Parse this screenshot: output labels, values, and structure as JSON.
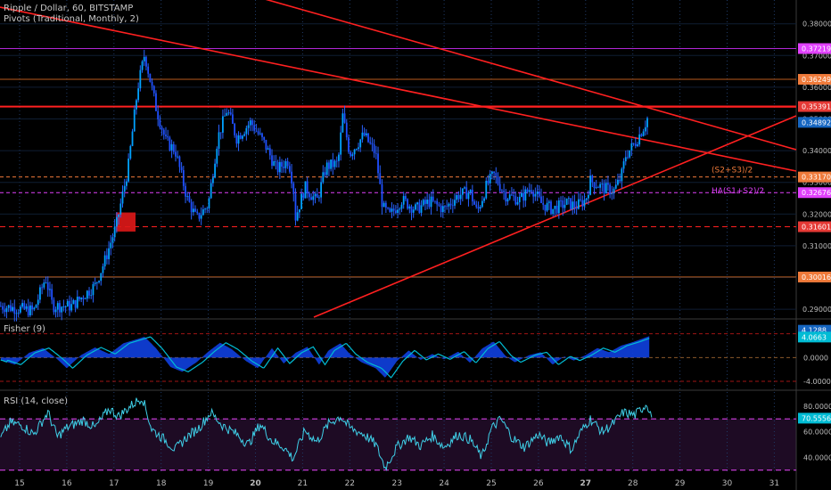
{
  "chart_data": [
    {
      "type": "candlestick",
      "title": "Ripple / Dollar, 60, BITSTAMP",
      "subtitle": "Pivots (Traditional, Monthly, 2)",
      "x_ticks": [
        "15",
        "16",
        "17",
        "18",
        "19",
        "20",
        "21",
        "22",
        "23",
        "24",
        "25",
        "26",
        "27",
        "28",
        "29",
        "30",
        "31"
      ],
      "bold_ticks": [
        "20",
        "27"
      ],
      "ylim": [
        0.2875,
        0.3875
      ],
      "y_ticks": [
        0.29,
        0.3,
        0.31,
        0.32,
        0.33,
        0.34,
        0.35,
        0.36,
        0.37,
        0.38
      ],
      "y_tick_labels": [
        "0.29000",
        "0.30000",
        "0.31000",
        "0.32000",
        "0.33000",
        "0.34000",
        "0.35000",
        "0.36000",
        "0.37000",
        "0.38000"
      ],
      "price_labels": [
        {
          "value": 0.37219,
          "label": "0.37219",
          "color": "#e040fb"
        },
        {
          "value": 0.36249,
          "label": "0.36249",
          "color": "#ef7a3a"
        },
        {
          "value": 0.35391,
          "label": "0.35391",
          "color": "#e53935"
        },
        {
          "value": 0.34892,
          "label": "0.34892",
          "color": "#1565c0"
        },
        {
          "value": 0.3317,
          "label": "0.33170",
          "color": "#ef7a3a"
        },
        {
          "value": 0.32676,
          "label": "0.32676",
          "color": "#e040fb"
        },
        {
          "value": 0.31601,
          "label": "0.31601",
          "color": "#e53935"
        },
        {
          "value": 0.30016,
          "label": "0.30016",
          "color": "#ef7a3a"
        }
      ],
      "pivot_labels": [
        {
          "text": "(S2+S3)/2",
          "value": 0.3317,
          "color": "#ef7a3a"
        },
        {
          "text": "HA(S1+S2)/2",
          "value": 0.32676,
          "color": "#e040fb"
        }
      ],
      "path": [
        [
          14.6,
          0.291
        ],
        [
          15.3,
          0.2895
        ],
        [
          15.55,
          0.3
        ],
        [
          15.7,
          0.291
        ],
        [
          16.1,
          0.291
        ],
        [
          16.6,
          0.2975
        ],
        [
          16.8,
          0.305
        ],
        [
          17.05,
          0.3165
        ],
        [
          17.3,
          0.3345
        ],
        [
          17.5,
          0.3595
        ],
        [
          17.65,
          0.3705
        ],
        [
          17.9,
          0.353
        ],
        [
          18.1,
          0.343
        ],
        [
          18.3,
          0.34
        ],
        [
          18.55,
          0.325
        ],
        [
          18.75,
          0.3185
        ],
        [
          19.0,
          0.323
        ],
        [
          19.2,
          0.344
        ],
        [
          19.4,
          0.353
        ],
        [
          19.6,
          0.344
        ],
        [
          19.9,
          0.349
        ],
        [
          20.2,
          0.342
        ],
        [
          20.45,
          0.334
        ],
        [
          20.7,
          0.337
        ],
        [
          20.8,
          0.329
        ],
        [
          20.85,
          0.319
        ],
        [
          21.05,
          0.3285
        ],
        [
          21.3,
          0.324
        ],
        [
          21.5,
          0.335
        ],
        [
          21.75,
          0.336
        ],
        [
          21.85,
          0.351
        ],
        [
          22.0,
          0.339
        ],
        [
          22.3,
          0.345
        ],
        [
          22.55,
          0.339
        ],
        [
          22.7,
          0.322
        ],
        [
          22.85,
          0.3195
        ],
        [
          23.1,
          0.3245
        ],
        [
          23.4,
          0.3215
        ],
        [
          23.7,
          0.324
        ],
        [
          24.0,
          0.3215
        ],
        [
          24.3,
          0.326
        ],
        [
          24.55,
          0.327
        ],
        [
          24.7,
          0.3205
        ],
        [
          24.9,
          0.329
        ],
        [
          25.05,
          0.3325
        ],
        [
          25.3,
          0.326
        ],
        [
          25.6,
          0.3245
        ],
        [
          25.85,
          0.3285
        ],
        [
          26.05,
          0.3235
        ],
        [
          26.3,
          0.3215
        ],
        [
          26.6,
          0.3235
        ],
        [
          26.8,
          0.3225
        ],
        [
          27.0,
          0.3245
        ],
        [
          27.1,
          0.3305
        ],
        [
          27.4,
          0.328
        ],
        [
          27.6,
          0.3275
        ],
        [
          27.75,
          0.3315
        ],
        [
          27.85,
          0.3385
        ],
        [
          28.05,
          0.3425
        ],
        [
          28.25,
          0.348
        ],
        [
          28.35,
          0.3518
        ]
      ]
    },
    {
      "type": "histogram",
      "title": "Fisher (9)",
      "ylim": [
        -5.2,
        6.2
      ],
      "y_ticks": [
        4.0,
        0.0,
        -4.0
      ],
      "y_tick_labels": [
        "4.0000",
        "0.0000",
        "-4.0000"
      ],
      "dashed_levels": [
        4.0,
        -4.0
      ],
      "current_labels": [
        {
          "value": 4.6,
          "label": "4.1288",
          "color": "#1565c0"
        },
        {
          "value": 3.45,
          "label": "4.0663",
          "color": "#00bcd4"
        }
      ],
      "path": [
        [
          14.6,
          -0.4
        ],
        [
          14.9,
          -1.2
        ],
        [
          15.2,
          0.8
        ],
        [
          15.5,
          1.6
        ],
        [
          15.8,
          -0.3
        ],
        [
          16.0,
          -1.8
        ],
        [
          16.3,
          0.4
        ],
        [
          16.6,
          1.7
        ],
        [
          16.9,
          0.6
        ],
        [
          17.2,
          2.4
        ],
        [
          17.45,
          3.0
        ],
        [
          17.65,
          3.5
        ],
        [
          17.9,
          1.5
        ],
        [
          18.2,
          -1.6
        ],
        [
          18.45,
          -2.4
        ],
        [
          18.75,
          -0.8
        ],
        [
          19.0,
          1.0
        ],
        [
          19.25,
          2.5
        ],
        [
          19.5,
          1.4
        ],
        [
          19.8,
          -0.6
        ],
        [
          20.05,
          -1.8
        ],
        [
          20.35,
          1.6
        ],
        [
          20.6,
          -1.0
        ],
        [
          20.85,
          0.8
        ],
        [
          21.1,
          1.8
        ],
        [
          21.35,
          -1.2
        ],
        [
          21.55,
          1.2
        ],
        [
          21.8,
          2.4
        ],
        [
          22.0,
          0.6
        ],
        [
          22.25,
          -0.8
        ],
        [
          22.55,
          -1.8
        ],
        [
          22.75,
          -3.4
        ],
        [
          23.0,
          -0.6
        ],
        [
          23.25,
          1.2
        ],
        [
          23.5,
          -0.4
        ],
        [
          23.75,
          0.6
        ],
        [
          24.0,
          -0.3
        ],
        [
          24.3,
          1.0
        ],
        [
          24.55,
          -0.9
        ],
        [
          24.8,
          1.5
        ],
        [
          25.05,
          2.7
        ],
        [
          25.3,
          0.3
        ],
        [
          25.5,
          -0.8
        ],
        [
          25.8,
          0.4
        ],
        [
          26.05,
          0.9
        ],
        [
          26.3,
          -1.2
        ],
        [
          26.55,
          0.2
        ],
        [
          26.75,
          -0.5
        ],
        [
          27.0,
          0.4
        ],
        [
          27.25,
          1.6
        ],
        [
          27.5,
          0.9
        ],
        [
          27.75,
          2.0
        ],
        [
          28.0,
          2.6
        ],
        [
          28.35,
          3.6
        ]
      ]
    },
    {
      "type": "line",
      "title": "RSI (14, close)",
      "ylim": [
        27.0,
        91.0
      ],
      "y_ticks": [
        80,
        60,
        40
      ],
      "y_tick_labels": [
        "80.0000",
        "60.0000",
        "40.0000"
      ],
      "dashed_levels": [
        70,
        30
      ],
      "current_labels": [
        {
          "value": 70.5556,
          "label": "70.5556",
          "color": "#00bcd4"
        }
      ],
      "path": [
        [
          14.6,
          55
        ],
        [
          14.8,
          67
        ],
        [
          15.05,
          65
        ],
        [
          15.3,
          58
        ],
        [
          15.6,
          75
        ],
        [
          15.8,
          56
        ],
        [
          16.0,
          63
        ],
        [
          16.35,
          69
        ],
        [
          16.6,
          63
        ],
        [
          16.9,
          78
        ],
        [
          17.1,
          72
        ],
        [
          17.35,
          80
        ],
        [
          17.6,
          87
        ],
        [
          17.8,
          62
        ],
        [
          18.1,
          53
        ],
        [
          18.3,
          46
        ],
        [
          18.55,
          56
        ],
        [
          18.8,
          63
        ],
        [
          19.05,
          75
        ],
        [
          19.3,
          65
        ],
        [
          19.6,
          58
        ],
        [
          19.85,
          50
        ],
        [
          20.1,
          66
        ],
        [
          20.35,
          53
        ],
        [
          20.6,
          48
        ],
        [
          20.8,
          39
        ],
        [
          21.05,
          61
        ],
        [
          21.3,
          52
        ],
        [
          21.55,
          66
        ],
        [
          21.8,
          72
        ],
        [
          22.0,
          63
        ],
        [
          22.3,
          58
        ],
        [
          22.55,
          50
        ],
        [
          22.75,
          32
        ],
        [
          23.0,
          48
        ],
        [
          23.25,
          56
        ],
        [
          23.5,
          49
        ],
        [
          23.75,
          57
        ],
        [
          24.0,
          48
        ],
        [
          24.3,
          58
        ],
        [
          24.55,
          54
        ],
        [
          24.8,
          40
        ],
        [
          25.0,
          62
        ],
        [
          25.2,
          70
        ],
        [
          25.45,
          55
        ],
        [
          25.7,
          48
        ],
        [
          26.0,
          58
        ],
        [
          26.2,
          51
        ],
        [
          26.45,
          57
        ],
        [
          26.7,
          46
        ],
        [
          26.9,
          60
        ],
        [
          27.1,
          70
        ],
        [
          27.35,
          60
        ],
        [
          27.55,
          65
        ],
        [
          27.8,
          75
        ],
        [
          28.05,
          73
        ],
        [
          28.3,
          82
        ],
        [
          28.4,
          72
        ]
      ]
    }
  ]
}
